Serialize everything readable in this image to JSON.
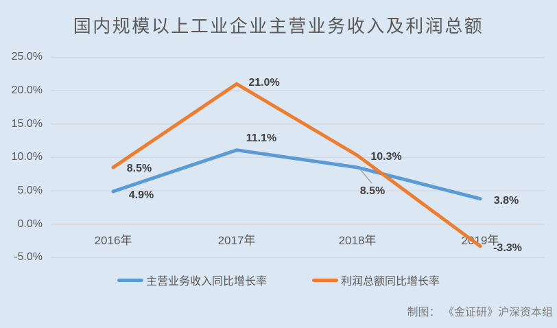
{
  "title": "国内规模以上工业企业主营业务收入及利润总额",
  "chart_data": {
    "type": "line",
    "categories": [
      "2016年",
      "2017年",
      "2018年",
      "2019年"
    ],
    "series": [
      {
        "name": "主营业务收入同比增长率",
        "color": "#5b9bd5",
        "values": [
          4.9,
          11.1,
          8.5,
          3.8
        ],
        "labels": [
          "4.9%",
          "11.1%",
          "8.5%",
          "3.8%"
        ],
        "label_offsets": [
          [
            41,
            6
          ],
          [
            36,
            -17
          ],
          [
            22,
            35
          ],
          [
            38,
            3
          ]
        ]
      },
      {
        "name": "利润总额同比增长率",
        "color": "#ed7d31",
        "values": [
          8.5,
          21.0,
          10.3,
          -3.3
        ],
        "labels": [
          "8.5%",
          "21.0%",
          "10.3%",
          "-3.3%"
        ],
        "label_offsets": [
          [
            38,
            2
          ],
          [
            40,
            -1
          ],
          [
            42,
            3
          ],
          [
            40,
            3
          ]
        ]
      }
    ],
    "title": "国内规模以上工业企业主营业务收入及利润总额",
    "xlabel": "",
    "ylabel": "",
    "ylim": [
      -5,
      25
    ],
    "yticks": [
      {
        "value": 25,
        "label": "25.0%"
      },
      {
        "value": 20,
        "label": "20.0%"
      },
      {
        "value": 15,
        "label": "15.0%"
      },
      {
        "value": 10,
        "label": "10.0%"
      },
      {
        "value": 5,
        "label": "5.0%"
      },
      {
        "value": 0,
        "label": "0.0%"
      },
      {
        "value": -5,
        "label": "-5.0%"
      }
    ],
    "grid": true,
    "legend_position": "bottom",
    "leader_line": [
      [
        526,
        248
      ],
      [
        542,
        267
      ]
    ]
  },
  "legend": {
    "items": [
      {
        "label": "主营业务收入同比增长率",
        "color": "#5b9bd5"
      },
      {
        "label": "利润总额同比增长率",
        "color": "#ed7d31"
      }
    ]
  },
  "credit": "制图： 《金证研》沪深资本组",
  "colors": {
    "background": "#dbe7f3",
    "gridline": "#d2d7dc",
    "title_text": "#595959",
    "axis_text": "#595959",
    "data_label_text": "#404040",
    "leader_line": "#a6a6a6",
    "credit_text": "#7f7f7f"
  }
}
